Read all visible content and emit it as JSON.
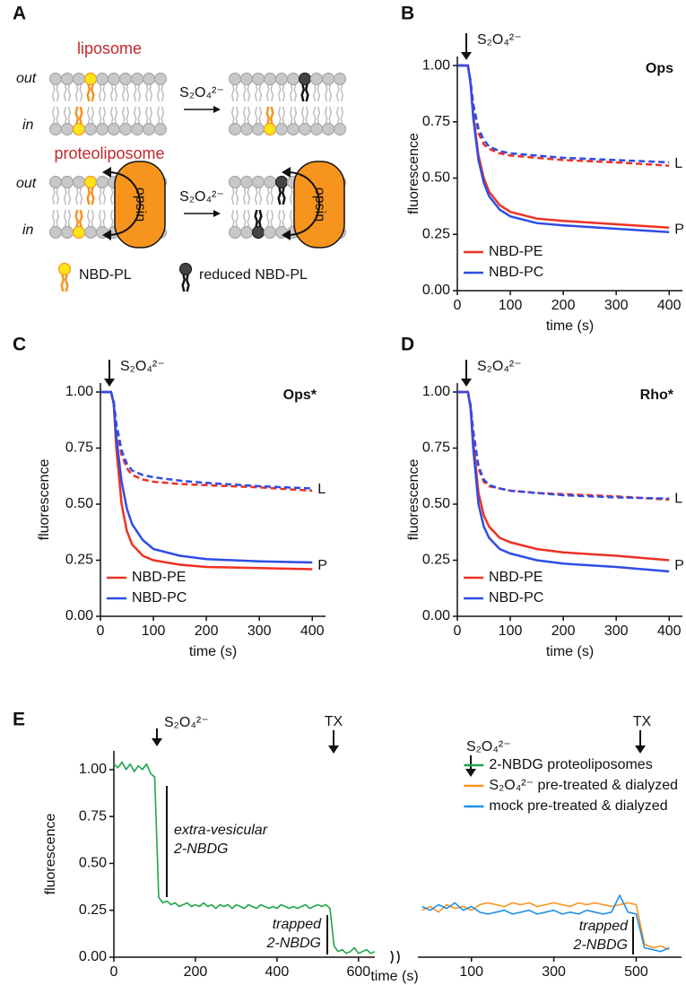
{
  "diagram": {
    "panel": "A",
    "rows": [
      {
        "title": "liposome",
        "sides": [
          "out",
          "in"
        ],
        "reagent": "S₂O₄²⁻"
      },
      {
        "title": "proteoliposome",
        "sides": [
          "out",
          "in"
        ],
        "reagent": "S₂O₄²⁻",
        "protein": [
          "opsin",
          "opsin"
        ]
      }
    ],
    "key": [
      "NBD-PL",
      "reduced NBD-PL"
    ]
  },
  "chart_data": [
    {
      "type": "line",
      "panel": "B",
      "title": "Ops",
      "reagent": "S₂O₄²⁻",
      "xlabel": "time (s)",
      "ylabel": "fluorescence",
      "xlim": [
        0,
        425
      ],
      "xticks": [
        0,
        100,
        200,
        300,
        400
      ],
      "ylim": [
        0,
        1.04
      ],
      "yticks": [
        {
          "value": 0,
          "label": "0.00"
        },
        {
          "value": 0.25,
          "label": "0.25"
        },
        {
          "value": 0.5,
          "label": "0.50"
        },
        {
          "value": 0.75,
          "label": "0.75"
        },
        {
          "value": 1,
          "label": "1.00"
        }
      ],
      "legend": "lower left",
      "x": [
        0,
        20,
        25,
        30,
        40,
        50,
        60,
        80,
        100,
        150,
        200,
        300,
        400
      ],
      "groups": [
        {
          "label": "L",
          "line_style": "dashed",
          "series": [
            {
              "name": "NBD-PE",
              "color": "#ee3124",
              "values": [
                1.0,
                1.0,
                0.93,
                0.82,
                0.7,
                0.65,
                0.63,
                0.61,
                0.6,
                0.59,
                0.58,
                0.57,
                0.555
              ]
            },
            {
              "name": "NBD-PC",
              "color": "#2e4de6",
              "values": [
                1.0,
                1.0,
                0.93,
                0.83,
                0.72,
                0.67,
                0.64,
                0.62,
                0.61,
                0.6,
                0.59,
                0.58,
                0.57
              ]
            }
          ]
        },
        {
          "label": "P",
          "line_style": "solid",
          "series": [
            {
              "name": "NBD-PE",
              "color": "#ee3124",
              "values": [
                1.0,
                1.0,
                0.92,
                0.78,
                0.6,
                0.5,
                0.44,
                0.38,
                0.35,
                0.32,
                0.31,
                0.295,
                0.28
              ]
            },
            {
              "name": "NBD-PC",
              "color": "#2e4de6",
              "values": [
                1.0,
                1.0,
                0.92,
                0.77,
                0.58,
                0.48,
                0.42,
                0.36,
                0.33,
                0.3,
                0.29,
                0.275,
                0.26
              ]
            }
          ]
        }
      ]
    },
    {
      "type": "line",
      "panel": "C",
      "title": "Ops*",
      "reagent": "S₂O₄²⁻",
      "xlabel": "time (s)",
      "ylabel": "fluorescence",
      "xlim": [
        0,
        425
      ],
      "xticks": [
        0,
        100,
        200,
        300,
        400
      ],
      "ylim": [
        0,
        1.04
      ],
      "yticks": [
        {
          "value": 0,
          "label": "0.00"
        },
        {
          "value": 0.25,
          "label": "0.25"
        },
        {
          "value": 0.5,
          "label": "0.50"
        },
        {
          "value": 0.75,
          "label": "0.75"
        },
        {
          "value": 1,
          "label": "1.00"
        }
      ],
      "legend": "lower left",
      "x": [
        0,
        20,
        25,
        30,
        40,
        50,
        60,
        80,
        100,
        150,
        200,
        300,
        400
      ],
      "groups": [
        {
          "label": "L",
          "line_style": "dashed",
          "series": [
            {
              "name": "NBD-PE",
              "color": "#ee3124",
              "values": [
                1.0,
                1.0,
                0.95,
                0.84,
                0.72,
                0.66,
                0.63,
                0.61,
                0.6,
                0.59,
                0.585,
                0.575,
                0.56
              ]
            },
            {
              "name": "NBD-PC",
              "color": "#2e4de6",
              "values": [
                1.0,
                1.0,
                0.96,
                0.86,
                0.74,
                0.68,
                0.65,
                0.63,
                0.62,
                0.605,
                0.595,
                0.58,
                0.57
              ]
            }
          ]
        },
        {
          "label": "P",
          "line_style": "solid",
          "series": [
            {
              "name": "NBD-PE",
              "color": "#ee3124",
              "values": [
                1.0,
                1.0,
                0.95,
                0.75,
                0.5,
                0.38,
                0.32,
                0.27,
                0.25,
                0.23,
                0.22,
                0.215,
                0.21
              ]
            },
            {
              "name": "NBD-PC",
              "color": "#2e4de6",
              "values": [
                1.0,
                1.0,
                0.95,
                0.8,
                0.6,
                0.48,
                0.41,
                0.34,
                0.3,
                0.27,
                0.255,
                0.245,
                0.24
              ]
            }
          ]
        }
      ]
    },
    {
      "type": "line",
      "panel": "D",
      "title": "Rho*",
      "reagent": "S₂O₄²⁻",
      "xlabel": "time (s)",
      "ylabel": "fluorescence",
      "xlim": [
        0,
        425
      ],
      "xticks": [
        0,
        100,
        200,
        300,
        400
      ],
      "ylim": [
        0,
        1.04
      ],
      "yticks": [
        {
          "value": 0,
          "label": "0.00"
        },
        {
          "value": 0.25,
          "label": "0.25"
        },
        {
          "value": 0.5,
          "label": "0.50"
        },
        {
          "value": 0.75,
          "label": "0.75"
        },
        {
          "value": 1,
          "label": "1.00"
        }
      ],
      "legend": "lower left",
      "x": [
        0,
        20,
        25,
        30,
        40,
        50,
        60,
        80,
        100,
        150,
        200,
        300,
        400
      ],
      "groups": [
        {
          "label": "L",
          "line_style": "dashed",
          "series": [
            {
              "name": "NBD-PE",
              "color": "#ee3124",
              "values": [
                1.0,
                1.0,
                0.94,
                0.82,
                0.66,
                0.6,
                0.58,
                0.57,
                0.56,
                0.55,
                0.545,
                0.535,
                0.52
              ]
            },
            {
              "name": "NBD-PC",
              "color": "#2e4de6",
              "values": [
                1.0,
                1.0,
                0.94,
                0.83,
                0.67,
                0.61,
                0.585,
                0.57,
                0.56,
                0.55,
                0.54,
                0.53,
                0.525
              ]
            }
          ]
        },
        {
          "label": "P",
          "line_style": "solid",
          "series": [
            {
              "name": "NBD-PE",
              "color": "#ee3124",
              "values": [
                1.0,
                1.0,
                0.93,
                0.78,
                0.55,
                0.45,
                0.4,
                0.35,
                0.33,
                0.3,
                0.285,
                0.27,
                0.25
              ]
            },
            {
              "name": "NBD-PC",
              "color": "#2e4de6",
              "values": [
                1.0,
                1.0,
                0.93,
                0.75,
                0.5,
                0.4,
                0.35,
                0.3,
                0.28,
                0.25,
                0.235,
                0.22,
                0.2
              ]
            }
          ]
        }
      ]
    },
    {
      "type": "line",
      "panel": "E",
      "xlabel": "time (s)",
      "ylabel": "fluorescence",
      "ylim": [
        0,
        1.1
      ],
      "yticks": [
        {
          "value": 0,
          "label": "0.00"
        },
        {
          "value": 0.25,
          "label": "0.25"
        },
        {
          "value": 0.5,
          "label": "0.50"
        },
        {
          "value": 0.75,
          "label": "0.75"
        },
        {
          "value": 1,
          "label": "1.00"
        }
      ],
      "legend": "upper right",
      "x_axes": [
        {
          "xlim": [
            0,
            640
          ],
          "xticks": [
            0,
            200,
            400,
            600
          ]
        },
        {
          "xlim": [
            -30,
            610
          ],
          "xticks": [
            100,
            300,
            500
          ]
        }
      ],
      "annotations": [
        [
          "S₂O₄²⁻"
        ],
        [
          "extra-vesicular",
          "2-NBDG"
        ],
        [
          "TX"
        ],
        [
          "trapped",
          "2-NBDG"
        ],
        [
          "S₂O₄²⁻"
        ],
        [
          "TX"
        ],
        [
          "trapped",
          "2-NBDG"
        ]
      ],
      "series": [
        {
          "name": "2-NBDG proteoliposomes",
          "color": "#1fa64a",
          "x_axis": 0,
          "x": [
            0,
            10,
            20,
            30,
            40,
            50,
            60,
            70,
            80,
            90,
            100,
            110,
            120,
            130,
            140,
            150,
            160,
            170,
            180,
            190,
            200,
            210,
            220,
            230,
            240,
            250,
            260,
            270,
            280,
            290,
            300,
            310,
            320,
            330,
            340,
            350,
            360,
            370,
            380,
            390,
            400,
            410,
            420,
            430,
            440,
            450,
            460,
            470,
            480,
            490,
            500,
            510,
            520,
            530,
            540,
            550,
            560,
            570,
            580,
            590,
            600,
            610,
            620,
            630,
            640
          ],
          "values": [
            1.03,
            1.01,
            1.04,
            1.0,
            1.03,
            0.99,
            1.02,
            1.0,
            1.03,
            0.98,
            0.96,
            0.32,
            0.29,
            0.3,
            0.28,
            0.29,
            0.27,
            0.28,
            0.29,
            0.27,
            0.28,
            0.27,
            0.29,
            0.27,
            0.28,
            0.26,
            0.28,
            0.27,
            0.28,
            0.26,
            0.28,
            0.27,
            0.26,
            0.28,
            0.27,
            0.26,
            0.28,
            0.27,
            0.26,
            0.27,
            0.26,
            0.28,
            0.27,
            0.26,
            0.27,
            0.26,
            0.27,
            0.28,
            0.26,
            0.27,
            0.28,
            0.27,
            0.28,
            0.26,
            0.06,
            0.03,
            0.04,
            0.02,
            0.03,
            0.05,
            0.02,
            0.03,
            0.04,
            0.02,
            0.03
          ]
        },
        {
          "name": "S₂O₄²⁻ pre-treated & dialyzed",
          "color": "#f7941d",
          "x_axis": 1,
          "x": [
            -20,
            0,
            20,
            40,
            60,
            80,
            100,
            120,
            140,
            160,
            180,
            200,
            220,
            240,
            260,
            280,
            300,
            320,
            340,
            360,
            380,
            400,
            420,
            440,
            460,
            480,
            500,
            520,
            540,
            560,
            580
          ],
          "values": [
            0.25,
            0.27,
            0.24,
            0.28,
            0.26,
            0.27,
            0.25,
            0.28,
            0.29,
            0.28,
            0.27,
            0.29,
            0.28,
            0.29,
            0.27,
            0.28,
            0.29,
            0.28,
            0.27,
            0.29,
            0.28,
            0.29,
            0.28,
            0.27,
            0.28,
            0.29,
            0.28,
            0.07,
            0.05,
            0.06,
            0.04
          ]
        },
        {
          "name": "mock pre-treated & dialyzed",
          "color": "#1e90e6",
          "x_axis": 1,
          "x": [
            -20,
            0,
            20,
            40,
            60,
            80,
            100,
            120,
            140,
            160,
            180,
            200,
            220,
            240,
            260,
            280,
            300,
            320,
            340,
            360,
            380,
            400,
            420,
            440,
            460,
            480,
            500,
            520,
            540,
            560,
            580
          ],
          "values": [
            0.27,
            0.25,
            0.28,
            0.26,
            0.29,
            0.25,
            0.27,
            0.24,
            0.23,
            0.24,
            0.25,
            0.23,
            0.24,
            0.25,
            0.23,
            0.24,
            0.25,
            0.23,
            0.24,
            0.23,
            0.25,
            0.24,
            0.23,
            0.24,
            0.33,
            0.24,
            0.23,
            0.05,
            0.04,
            0.03,
            0.05
          ]
        }
      ]
    }
  ]
}
